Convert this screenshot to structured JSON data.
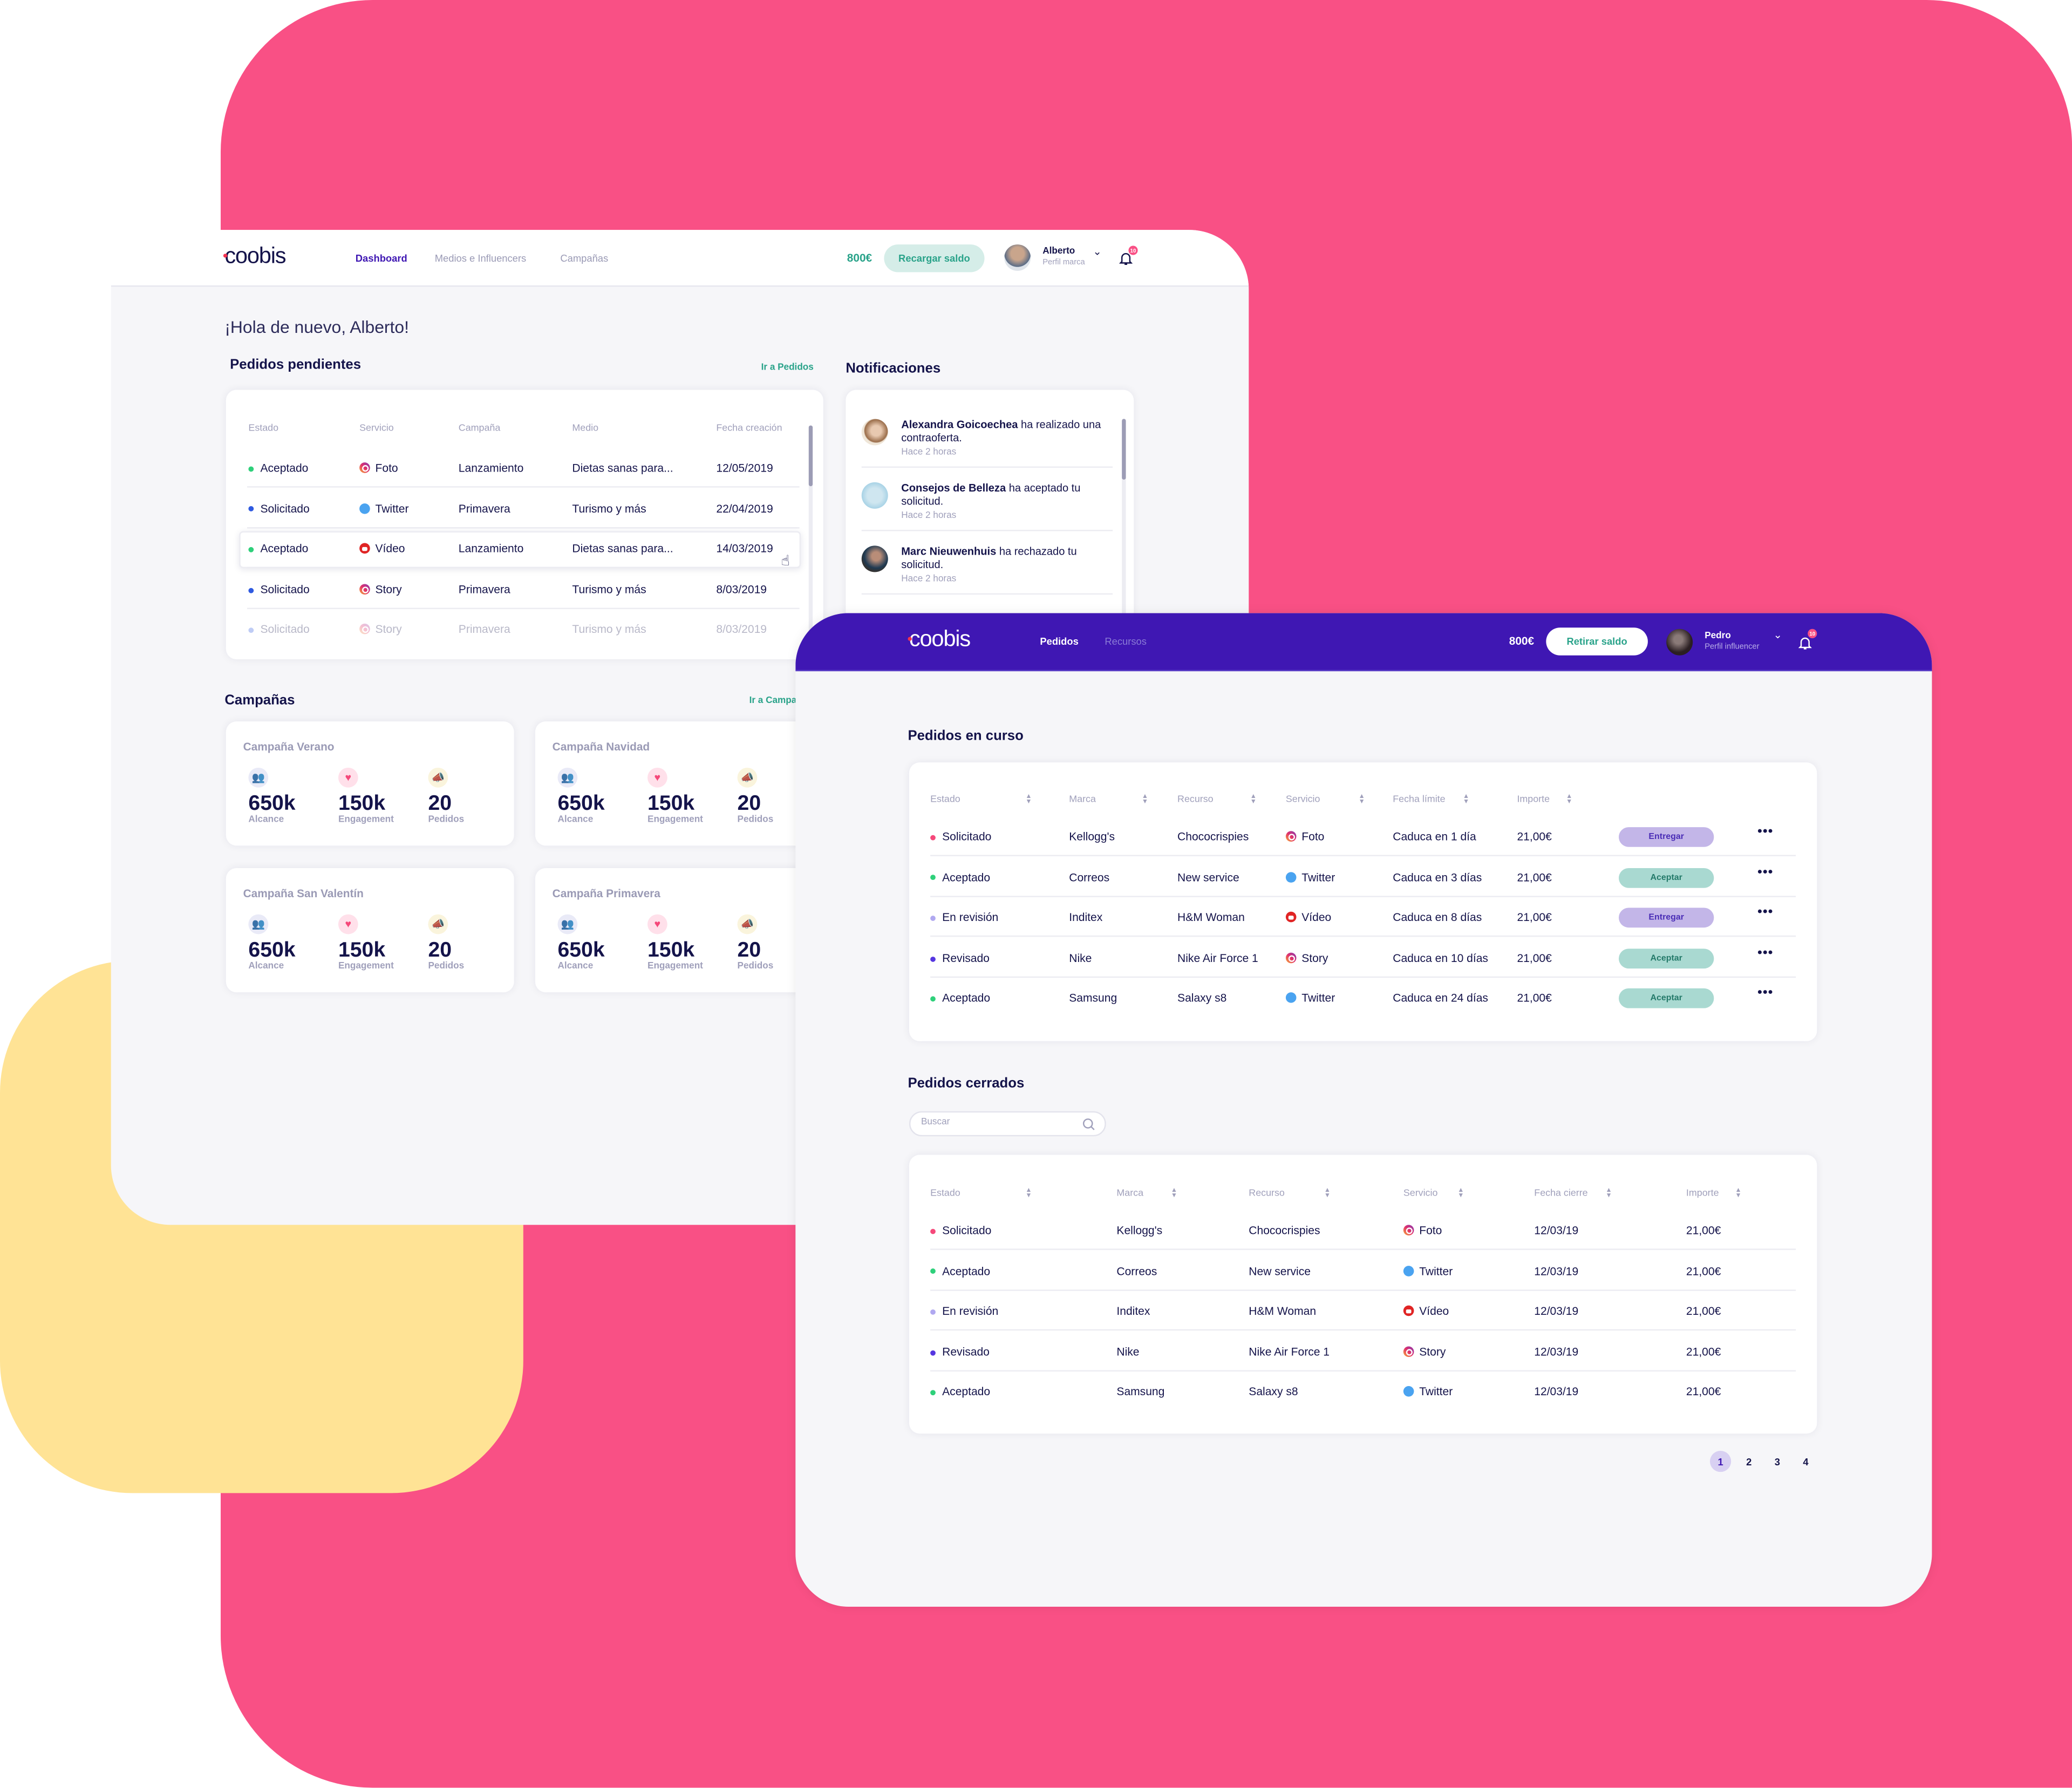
{
  "colors": {
    "background_pink": "#f95085",
    "background_yellow": "#ffe395",
    "brand_purple": "#3f17b3",
    "accent_teal": "#2aa38a"
  },
  "brand_app": {
    "logo": "coobis",
    "nav": [
      {
        "label": "Dashboard",
        "active": true
      },
      {
        "label": "Medios e Influencers",
        "active": false
      },
      {
        "label": "Campañas",
        "active": false
      }
    ],
    "balance": "800€",
    "recharge_button": "Recargar saldo",
    "user": {
      "name": "Alberto",
      "role": "Perfil marca"
    },
    "notification_count": "10",
    "greeting": "¡Hola de nuevo, Alberto!",
    "pending_orders": {
      "title": "Pedidos pendientes",
      "link": "Ir a Pedidos",
      "columns": [
        "Estado",
        "Servicio",
        "Campaña",
        "Medio",
        "Fecha creación"
      ],
      "rows": [
        {
          "estado": "Aceptado",
          "status": "green",
          "servicio": "Foto",
          "icon": "insta",
          "campana": "Lanzamiento",
          "medio": "Dietas sanas para...",
          "fecha": "12/05/2019"
        },
        {
          "estado": "Solicitado",
          "status": "blue",
          "servicio": "Twitter",
          "icon": "twitter",
          "campana": "Primavera",
          "medio": "Turismo y más",
          "fecha": "22/04/2019"
        },
        {
          "estado": "Aceptado",
          "status": "green",
          "servicio": "Vídeo",
          "icon": "video",
          "campana": "Lanzamiento",
          "medio": "Dietas sanas para...",
          "fecha": "14/03/2019",
          "highlighted": true
        },
        {
          "estado": "Solicitado",
          "status": "blue",
          "servicio": "Story",
          "icon": "insta",
          "campana": "Primavera",
          "medio": "Turismo y más",
          "fecha": "8/03/2019"
        },
        {
          "estado": "Solicitado",
          "status": "blue",
          "servicio": "Story",
          "icon": "insta",
          "campana": "Primavera",
          "medio": "Turismo y más",
          "fecha": "8/03/2019",
          "faded": true
        }
      ]
    },
    "notifications": {
      "title": "Notificaciones",
      "items": [
        {
          "name": "Alexandra Goicoechea",
          "text": " ha realizado una contraoferta.",
          "time": "Hace 2 horas"
        },
        {
          "name": "Consejos de Belleza",
          "text": " ha aceptado tu solicitud.",
          "time": "Hace 2 horas"
        },
        {
          "name": "Marc Nieuwenhuis",
          "text": " ha rechazado tu solicitud.",
          "time": "Hace 2 horas"
        }
      ]
    },
    "campaigns": {
      "title": "Campañas",
      "link": "Ir a Campañas",
      "items": [
        {
          "name": "Campaña Verano",
          "alcance": "650k",
          "engagement": "150k",
          "pedidos": "20"
        },
        {
          "name": "Campaña Navidad",
          "alcance": "650k",
          "engagement": "150k",
          "pedidos": "20"
        },
        {
          "name": "Campaña San Valentín",
          "alcance": "650k",
          "engagement": "150k",
          "pedidos": "20"
        },
        {
          "name": "Campaña Primavera",
          "alcance": "650k",
          "engagement": "150k",
          "pedidos": "20"
        }
      ],
      "labels": {
        "alcance": "Alcance",
        "engagement": "Engagement",
        "pedidos": "Pedidos"
      }
    }
  },
  "influencer_app": {
    "logo": "coobis",
    "nav": [
      {
        "label": "Pedidos",
        "active": true
      },
      {
        "label": "Recursos",
        "active": false
      }
    ],
    "balance": "800€",
    "withdraw_button": "Retirar saldo",
    "user": {
      "name": "Pedro",
      "role": "Perfil influencer"
    },
    "notification_count": "10",
    "current_orders": {
      "title": "Pedidos en curso",
      "columns": [
        "Estado",
        "Marca",
        "Recurso",
        "Servicio",
        "Fecha límite",
        "Importe"
      ],
      "rows": [
        {
          "estado": "Solicitado",
          "status": "pink",
          "marca": "Kellogg's",
          "recurso": "Chococrispies",
          "servicio": "Foto",
          "icon": "insta",
          "fecha": "Caduca en 1 día",
          "importe": "21,00€",
          "action": "Entregar"
        },
        {
          "estado": "Aceptado",
          "status": "green",
          "marca": "Correos",
          "recurso": "New service",
          "servicio": "Twitter",
          "icon": "twitter",
          "fecha": "Caduca en 3 días",
          "importe": "21,00€",
          "action": "Aceptar"
        },
        {
          "estado": "En revisión",
          "status": "lavender",
          "marca": "Inditex",
          "recurso": "H&M Woman",
          "servicio": "Vídeo",
          "icon": "video",
          "fecha": "Caduca en 8 días",
          "importe": "21,00€",
          "action": "Entregar"
        },
        {
          "estado": "Revisado",
          "status": "purple",
          "marca": "Nike",
          "recurso": "Nike Air Force 1",
          "servicio": "Story",
          "icon": "insta",
          "fecha": "Caduca en 10 días",
          "importe": "21,00€",
          "action": "Aceptar"
        },
        {
          "estado": "Aceptado",
          "status": "green",
          "marca": "Samsung",
          "recurso": "Salaxy s8",
          "servicio": "Twitter",
          "icon": "twitter",
          "fecha": "Caduca en 24 días",
          "importe": "21,00€",
          "action": "Aceptar"
        }
      ]
    },
    "closed_orders": {
      "title": "Pedidos cerrados",
      "search_placeholder": "Buscar",
      "search_value": "",
      "columns": [
        "Estado",
        "Marca",
        "Recurso",
        "Servicio",
        "Fecha cierre",
        "Importe"
      ],
      "rows": [
        {
          "estado": "Solicitado",
          "status": "pink",
          "marca": "Kellogg's",
          "recurso": "Chococrispies",
          "servicio": "Foto",
          "icon": "insta",
          "fecha": "12/03/19",
          "importe": "21,00€"
        },
        {
          "estado": "Aceptado",
          "status": "green",
          "marca": "Correos",
          "recurso": "New service",
          "servicio": "Twitter",
          "icon": "twitter",
          "fecha": "12/03/19",
          "importe": "21,00€"
        },
        {
          "estado": "En revisión",
          "status": "lavender",
          "marca": "Inditex",
          "recurso": "H&M Woman",
          "servicio": "Vídeo",
          "icon": "video",
          "fecha": "12/03/19",
          "importe": "21,00€"
        },
        {
          "estado": "Revisado",
          "status": "purple",
          "marca": "Nike",
          "recurso": "Nike Air Force 1",
          "servicio": "Story",
          "icon": "insta",
          "fecha": "12/03/19",
          "importe": "21,00€"
        },
        {
          "estado": "Aceptado",
          "status": "green",
          "marca": "Samsung",
          "recurso": "Salaxy s8",
          "servicio": "Twitter",
          "icon": "twitter",
          "fecha": "12/03/19",
          "importe": "21,00€"
        }
      ],
      "pagination": {
        "pages": [
          "1",
          "2",
          "3",
          "4"
        ],
        "current": "1"
      }
    }
  }
}
